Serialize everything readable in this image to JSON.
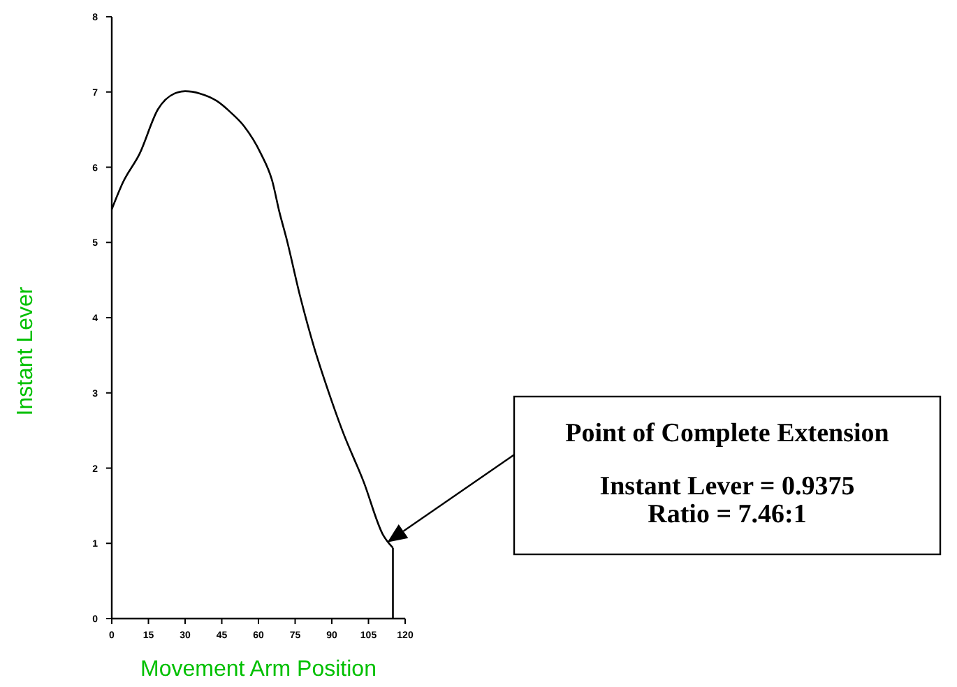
{
  "chart_data": {
    "type": "line",
    "xlabel": "Movement Arm Position",
    "ylabel": "Instant Lever",
    "xlim": [
      0,
      120
    ],
    "xticks": [
      0,
      15,
      30,
      45,
      60,
      75,
      90,
      105,
      120
    ],
    "ylim": [
      0,
      8
    ],
    "yticks": [
      0,
      1,
      2,
      3,
      4,
      5,
      6,
      7,
      8
    ],
    "grid": false,
    "marker": "none",
    "line_style": "solid",
    "series": [
      {
        "color": "#000000",
        "x": [
          0,
          4.6,
          11.4,
          18.9,
          25.7,
          30,
          36,
          43,
          48.6,
          54,
          61,
          65.7,
          68.6,
          71.4,
          77,
          83,
          88.6,
          94.3,
          103,
          111,
          115
        ],
        "values": [
          5.44,
          5.8,
          6.18,
          6.77,
          6.98,
          7.01,
          6.98,
          6.88,
          6.73,
          6.55,
          6.18,
          5.81,
          5.4,
          5.06,
          4.29,
          3.58,
          3.02,
          2.5,
          1.82,
          1.11,
          0.94
        ]
      },
      {
        "color": "#000000",
        "x": [
          115,
          115
        ],
        "values": [
          0,
          0.94
        ]
      }
    ],
    "annotations": [
      "Point of Complete Extension",
      "Instant Lever = 0.9375",
      "Ratio = 7.46:1"
    ]
  }
}
